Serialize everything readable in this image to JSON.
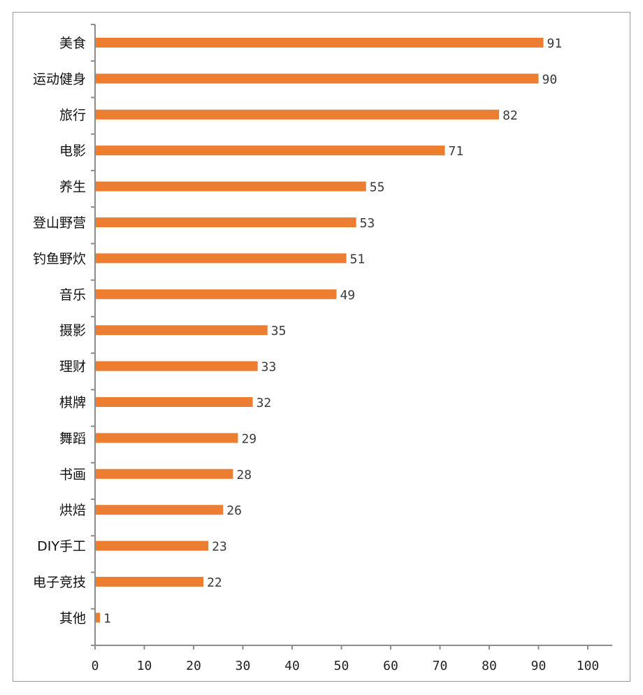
{
  "chart_data": {
    "type": "bar",
    "orientation": "horizontal",
    "categories": [
      "美食",
      "运动健身",
      "旅行",
      "电影",
      "养生",
      "登山野营",
      "钓鱼野炊",
      "音乐",
      "摄影",
      "理财",
      "棋牌",
      "舞蹈",
      "书画",
      "烘焙",
      "DIY手工",
      "电子竞技",
      "其他"
    ],
    "values": [
      91,
      90,
      82,
      71,
      55,
      53,
      51,
      49,
      35,
      33,
      32,
      29,
      28,
      26,
      23,
      22,
      1
    ],
    "value_labels": [
      "91",
      "90",
      "82",
      "71",
      "55",
      "53",
      "51",
      "49",
      "35",
      "33",
      "32",
      "29",
      "28",
      "26",
      "23",
      "22",
      "1"
    ],
    "xlim": [
      0,
      100
    ],
    "xticks": [
      0,
      10,
      20,
      30,
      40,
      50,
      60,
      70,
      80,
      90,
      100
    ],
    "xtick_labels": [
      "0",
      "10",
      "20",
      "30",
      "40",
      "50",
      "60",
      "70",
      "80",
      "90",
      "100"
    ],
    "title": "",
    "xlabel": "",
    "ylabel": "",
    "grid": false,
    "legend": "none",
    "bar_color": "#ED7D31"
  }
}
